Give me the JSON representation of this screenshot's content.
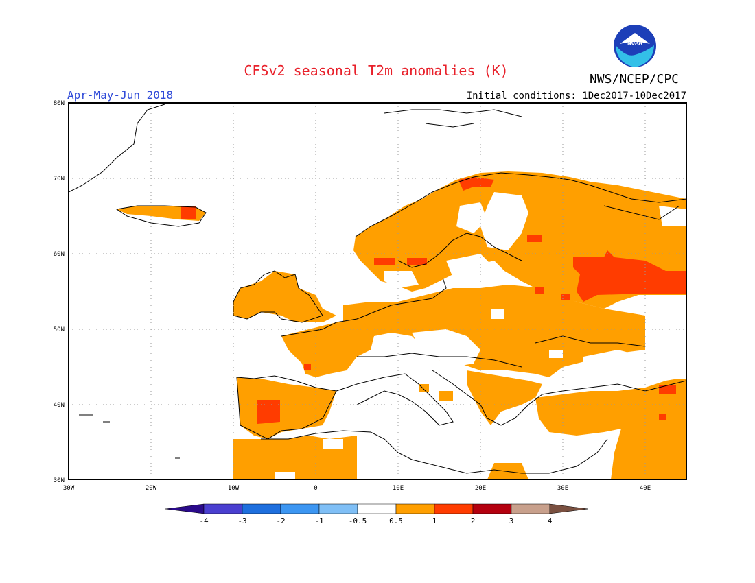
{
  "title": "CFSv2 seasonal T2m anomalies (K)",
  "period": "Apr-May-Jun 2018",
  "initial_conditions": "Initial conditions: 1Dec2017-10Dec2017",
  "agency": "NWS/NCEP/CPC",
  "logo_text": "NOAA",
  "colors": {
    "title": "#e8202a",
    "period": "#2f4ad8",
    "orange": "#ff9f00",
    "red": "#ff3c00",
    "darkred": "#b4000f",
    "frame": "#000000",
    "grid": "#9a9a9a"
  },
  "lat_labels": [
    "80N",
    "70N",
    "60N",
    "50N",
    "40N",
    "30N"
  ],
  "lon_labels": [
    "30W",
    "20W",
    "10W",
    "0",
    "10E",
    "20E",
    "30E",
    "40E"
  ],
  "colorbar": {
    "colors": [
      "#2a0a8a",
      "#4a3fd0",
      "#1e6fde",
      "#3c96f2",
      "#7fbff6",
      "#ffffff",
      "#ff9f00",
      "#ff3c00",
      "#b4000f",
      "#c8a08c",
      "#7a5040"
    ],
    "labels": [
      "-4",
      "-3",
      "-2",
      "-1",
      "-0.5",
      "0.5",
      "1",
      "2",
      "3",
      "4"
    ]
  }
}
